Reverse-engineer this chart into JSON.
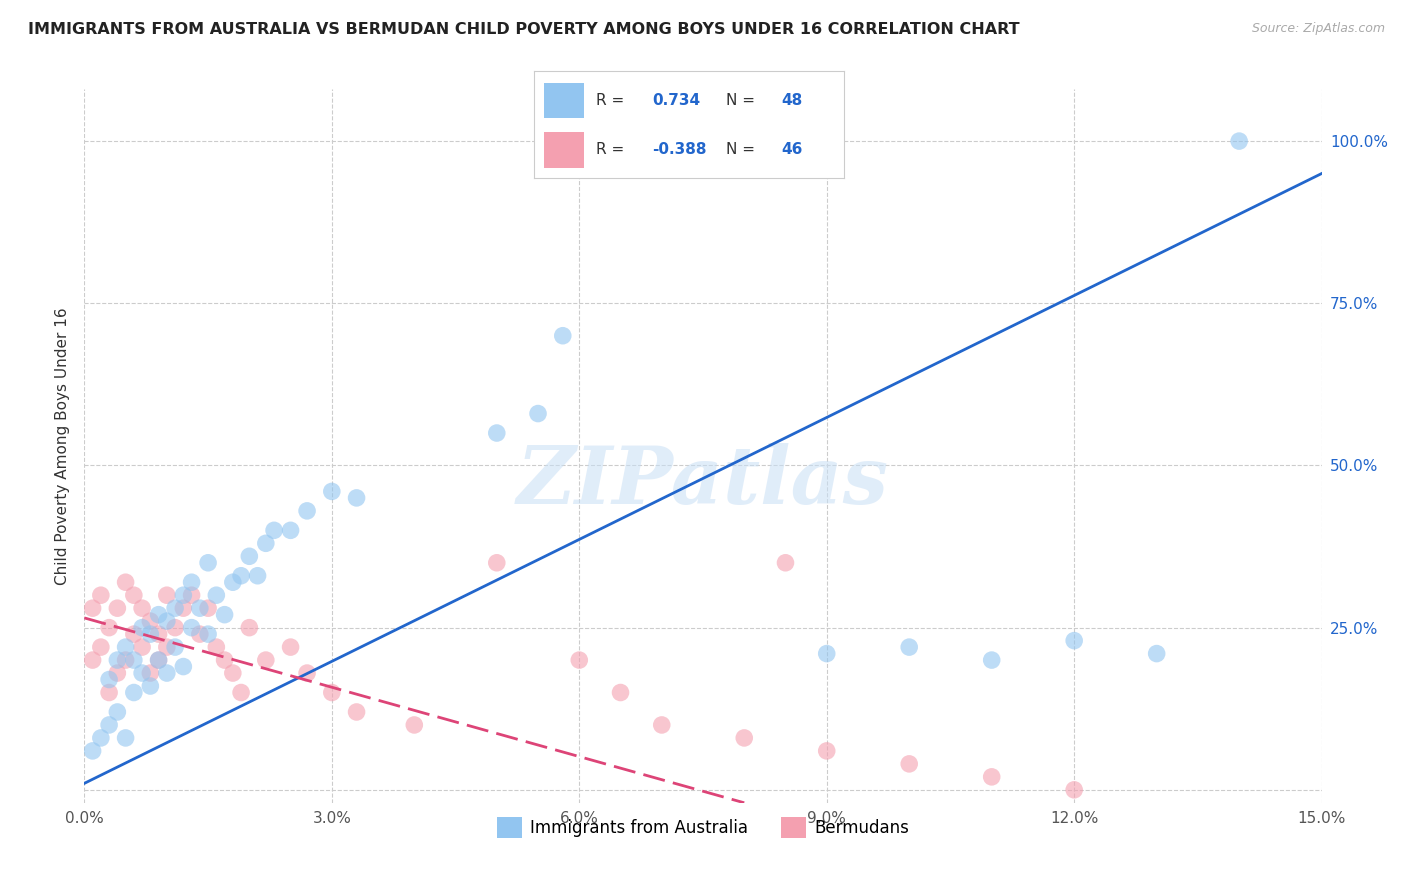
{
  "title": "IMMIGRANTS FROM AUSTRALIA VS BERMUDAN CHILD POVERTY AMONG BOYS UNDER 16 CORRELATION CHART",
  "source": "Source: ZipAtlas.com",
  "ylabel": "Child Poverty Among Boys Under 16",
  "xlim": [
    0.0,
    0.15
  ],
  "ylim": [
    -0.02,
    1.08
  ],
  "xticks": [
    0.0,
    0.03,
    0.06,
    0.09,
    0.12,
    0.15
  ],
  "xticklabels": [
    "0.0%",
    "3.0%",
    "6.0%",
    "9.0%",
    "12.0%",
    "15.0%"
  ],
  "yticks": [
    0.0,
    0.25,
    0.5,
    0.75,
    1.0
  ],
  "yticklabels": [
    "",
    "25.0%",
    "50.0%",
    "75.0%",
    "100.0%"
  ],
  "legend_label1": "Immigrants from Australia",
  "legend_label2": "Bermudans",
  "R1": "0.734",
  "N1": "48",
  "R2": "-0.388",
  "N2": "46",
  "blue_color": "#92c5f0",
  "pink_color": "#f4a0b0",
  "blue_line_color": "#2266cc",
  "pink_line_color": "#dd4477",
  "blue_reg": [
    0.01,
    0.95
  ],
  "pink_reg": [
    0.265,
    -0.02
  ],
  "watermark": "ZIPatlas",
  "blue_scatter_x": [
    0.001,
    0.002,
    0.003,
    0.003,
    0.004,
    0.004,
    0.005,
    0.005,
    0.006,
    0.006,
    0.007,
    0.007,
    0.008,
    0.008,
    0.009,
    0.009,
    0.01,
    0.01,
    0.011,
    0.011,
    0.012,
    0.012,
    0.013,
    0.013,
    0.014,
    0.015,
    0.015,
    0.016,
    0.017,
    0.018,
    0.019,
    0.02,
    0.021,
    0.022,
    0.023,
    0.025,
    0.027,
    0.03,
    0.033,
    0.05,
    0.055,
    0.058,
    0.09,
    0.1,
    0.11,
    0.12,
    0.13,
    0.14
  ],
  "blue_scatter_y": [
    0.06,
    0.08,
    0.1,
    0.17,
    0.12,
    0.2,
    0.08,
    0.22,
    0.15,
    0.2,
    0.18,
    0.25,
    0.16,
    0.24,
    0.2,
    0.27,
    0.18,
    0.26,
    0.22,
    0.28,
    0.19,
    0.3,
    0.25,
    0.32,
    0.28,
    0.24,
    0.35,
    0.3,
    0.27,
    0.32,
    0.33,
    0.36,
    0.33,
    0.38,
    0.4,
    0.4,
    0.43,
    0.46,
    0.45,
    0.55,
    0.58,
    0.7,
    0.21,
    0.22,
    0.2,
    0.23,
    0.21,
    1.0
  ],
  "pink_scatter_x": [
    0.001,
    0.001,
    0.002,
    0.002,
    0.003,
    0.003,
    0.004,
    0.004,
    0.005,
    0.005,
    0.006,
    0.006,
    0.007,
    0.007,
    0.008,
    0.008,
    0.009,
    0.009,
    0.01,
    0.01,
    0.011,
    0.012,
    0.013,
    0.014,
    0.015,
    0.016,
    0.017,
    0.018,
    0.019,
    0.02,
    0.022,
    0.025,
    0.027,
    0.03,
    0.033,
    0.04,
    0.05,
    0.06,
    0.065,
    0.07,
    0.08,
    0.085,
    0.09,
    0.1,
    0.11,
    0.12
  ],
  "pink_scatter_y": [
    0.2,
    0.28,
    0.22,
    0.3,
    0.15,
    0.25,
    0.18,
    0.28,
    0.2,
    0.32,
    0.24,
    0.3,
    0.22,
    0.28,
    0.18,
    0.26,
    0.2,
    0.24,
    0.22,
    0.3,
    0.25,
    0.28,
    0.3,
    0.24,
    0.28,
    0.22,
    0.2,
    0.18,
    0.15,
    0.25,
    0.2,
    0.22,
    0.18,
    0.15,
    0.12,
    0.1,
    0.35,
    0.2,
    0.15,
    0.1,
    0.08,
    0.35,
    0.06,
    0.04,
    0.02,
    0.0
  ]
}
